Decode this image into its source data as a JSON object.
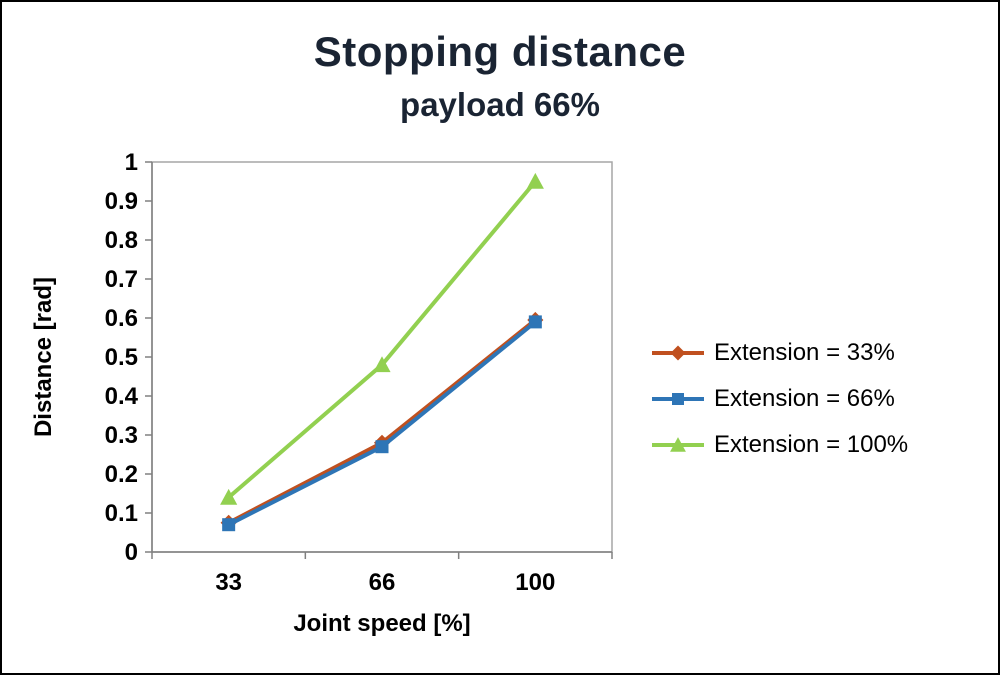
{
  "chart_data": {
    "type": "line",
    "title": "Stopping distance",
    "subtitle": "payload 66%",
    "xlabel": "Joint speed [%]",
    "ylabel": "Distance [rad]",
    "categories": [
      "33",
      "66",
      "100"
    ],
    "ylim": [
      0,
      1
    ],
    "ytick_step": 0.1,
    "grid": false,
    "legend_position": "right",
    "series": [
      {
        "name": "Extension = 33%",
        "marker": "diamond",
        "color": "#c0501f",
        "values": [
          0.075,
          0.28,
          0.595
        ]
      },
      {
        "name": "Extension = 66%",
        "marker": "square",
        "color": "#2e75b6",
        "values": [
          0.07,
          0.27,
          0.59
        ]
      },
      {
        "name": "Extension = 100%",
        "marker": "triangle",
        "color": "#92d050",
        "values": [
          0.14,
          0.48,
          0.95
        ]
      }
    ],
    "colors": {
      "title_text": "#1a2433",
      "axis_line": "#808080",
      "plot_border": "#a6a6a6",
      "tick_text": "#000000"
    }
  }
}
